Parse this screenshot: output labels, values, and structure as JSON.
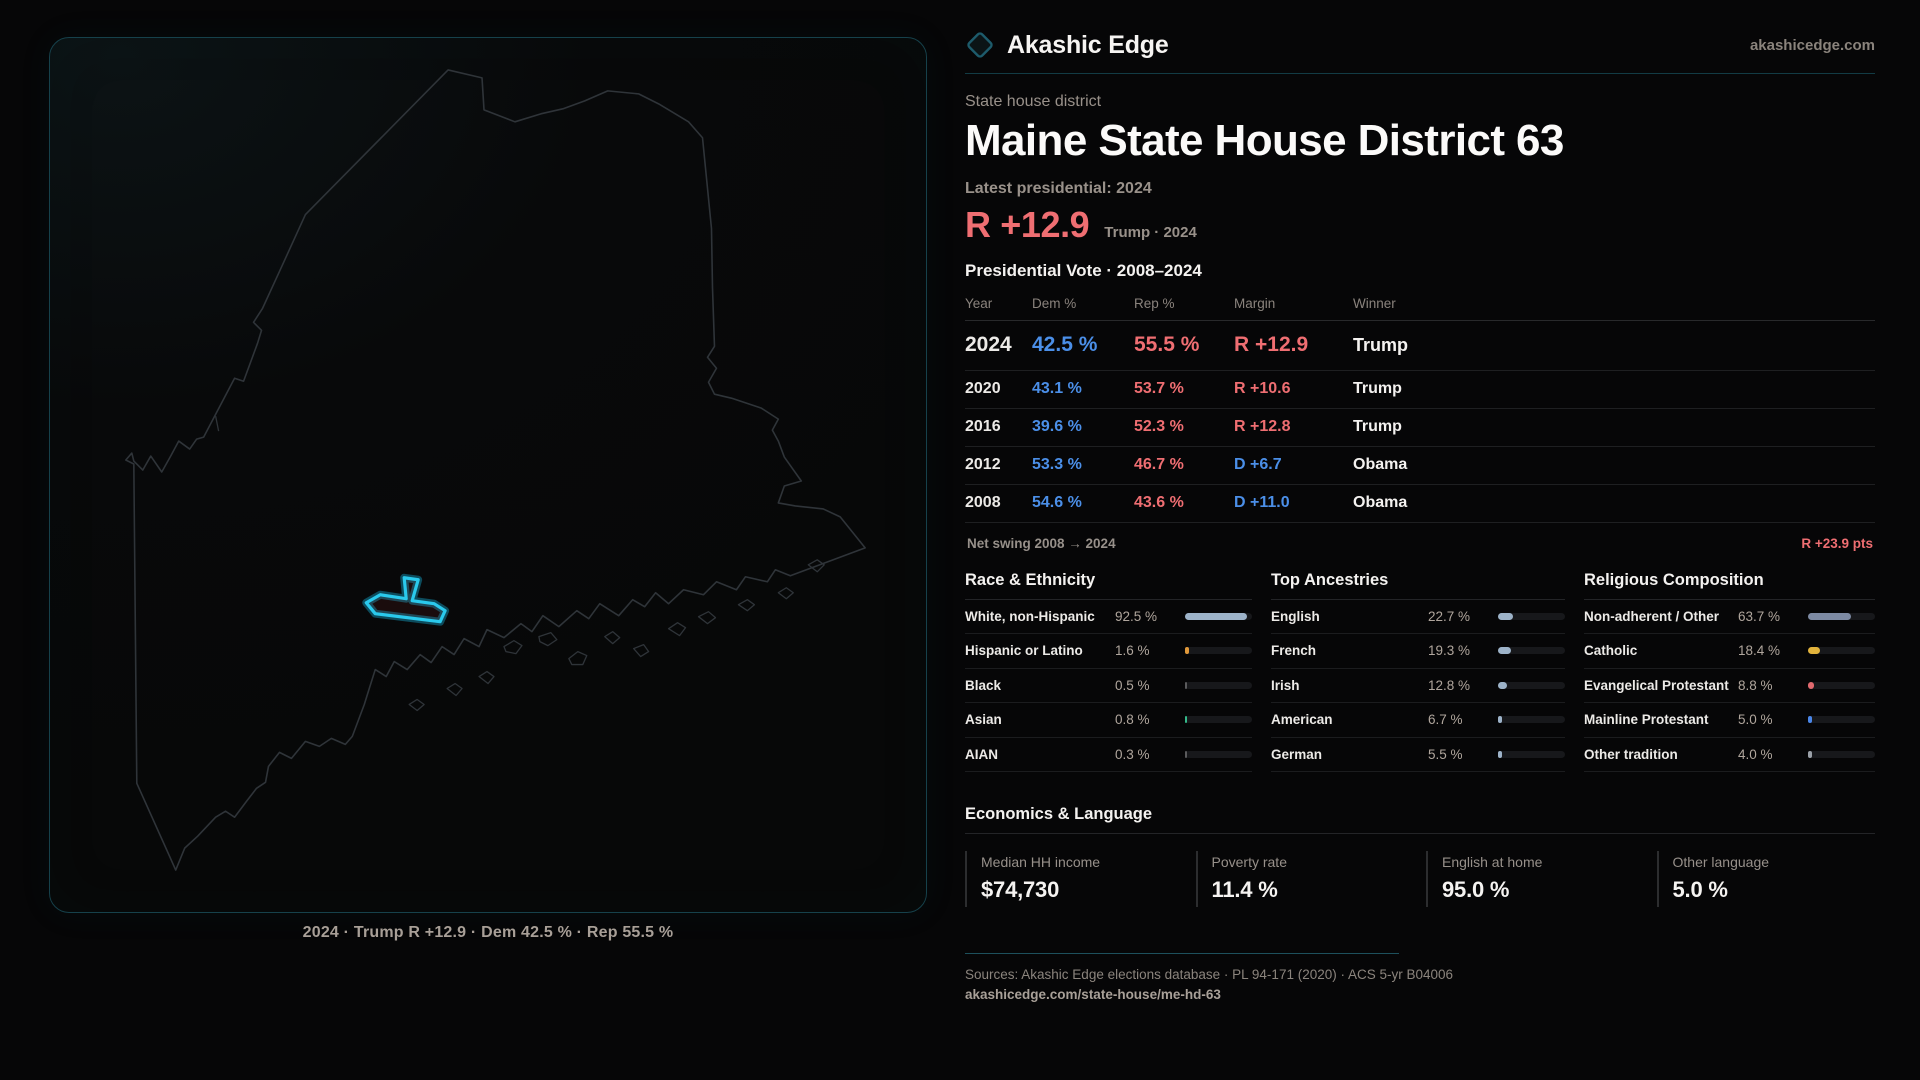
{
  "theme": {
    "accent_cyan": "#2ac9ec",
    "dem_blue": "#4b8fe8",
    "rep_red": "#ef6e72"
  },
  "brand": {
    "logo_icon": "diamond-icon",
    "name": "Akashic Edge",
    "site": "akashicedge.com"
  },
  "header": {
    "kicker": "State house district",
    "title": "Maine State House District 63",
    "latest_label": "Latest presidential: 2024",
    "headline_margin": "R +12.9",
    "headline_context": "Trump · 2024"
  },
  "table": {
    "title": "Presidential Vote · 2008–2024",
    "columns": [
      "Year",
      "Dem %",
      "Rep %",
      "Margin",
      "Winner"
    ],
    "rows": [
      {
        "year": "2024",
        "dem": "42.5 %",
        "rep": "55.5 %",
        "margin": "R +12.9",
        "margin_side": "R",
        "winner": "Trump",
        "emph": true
      },
      {
        "year": "2020",
        "dem": "43.1 %",
        "rep": "53.7 %",
        "margin": "R +10.6",
        "margin_side": "R",
        "winner": "Trump",
        "emph": false
      },
      {
        "year": "2016",
        "dem": "39.6 %",
        "rep": "52.3 %",
        "margin": "R +12.8",
        "margin_side": "R",
        "winner": "Trump",
        "emph": false
      },
      {
        "year": "2012",
        "dem": "53.3 %",
        "rep": "46.7 %",
        "margin": "D +6.7",
        "margin_side": "D",
        "winner": "Obama",
        "emph": false
      },
      {
        "year": "2008",
        "dem": "54.6 %",
        "rep": "43.6 %",
        "margin": "D +11.0",
        "margin_side": "D",
        "winner": "Obama",
        "emph": false
      }
    ]
  },
  "net_swing": {
    "label": "Net swing 2008 → 2024",
    "value": "R +23.9 pts"
  },
  "race": {
    "title": "Race & Ethnicity",
    "rows": [
      {
        "label": "White, non-Hispanic",
        "value": "92.5 %",
        "pct": 92.5,
        "color": "#9db3c9"
      },
      {
        "label": "Hispanic or Latino",
        "value": "1.6 %",
        "pct": 1.6,
        "color": "#e0983a"
      },
      {
        "label": "Black",
        "value": "0.5 %",
        "pct": 0.5,
        "color": "#5a5a5c"
      },
      {
        "label": "Asian",
        "value": "0.8 %",
        "pct": 0.8,
        "color": "#35b98a"
      },
      {
        "label": "AIAN",
        "value": "0.3 %",
        "pct": 0.3,
        "color": "#5a5a5c"
      }
    ]
  },
  "ancestries": {
    "title": "Top Ancestries",
    "rows": [
      {
        "label": "English",
        "value": "22.7 %",
        "pct": 22.7,
        "color": "#9db3c9"
      },
      {
        "label": "French",
        "value": "19.3 %",
        "pct": 19.3,
        "color": "#9db3c9"
      },
      {
        "label": "Irish",
        "value": "12.8 %",
        "pct": 12.8,
        "color": "#9db3c9"
      },
      {
        "label": "American",
        "value": "6.7 %",
        "pct": 6.7,
        "color": "#9db3c9"
      },
      {
        "label": "German",
        "value": "5.5 %",
        "pct": 5.5,
        "color": "#9db3c9"
      }
    ]
  },
  "religion": {
    "title": "Religious Composition",
    "rows": [
      {
        "label": "Non-adherent / Other",
        "value": "63.7 %",
        "pct": 63.7,
        "color": "#7d8aa3"
      },
      {
        "label": "Catholic",
        "value": "18.4 %",
        "pct": 18.4,
        "color": "#e2b33c"
      },
      {
        "label": "Evangelical Protestant",
        "value": "8.8 %",
        "pct": 8.8,
        "color": "#e0696e"
      },
      {
        "label": "Mainline Protestant",
        "value": "5.0 %",
        "pct": 5.0,
        "color": "#4a86e8"
      },
      {
        "label": "Other tradition",
        "value": "4.0 %",
        "pct": 4.0,
        "color": "#9aa0a8"
      }
    ]
  },
  "economics": {
    "title": "Economics & Language",
    "stats": [
      {
        "label": "Median HH income",
        "value": "$74,730"
      },
      {
        "label": "Poverty rate",
        "value": "11.4 %"
      },
      {
        "label": "English at home",
        "value": "95.0 %"
      },
      {
        "label": "Other language",
        "value": "5.0 %"
      }
    ]
  },
  "map": {
    "caption": "2024 · Trump R +12.9 · Dem 42.5 % · Rep 55.5 %"
  },
  "footer": {
    "sources": "Sources: Akashic Edge elections database · PL 94-171 (2020) · ACS 5-yr B04006",
    "url": "akashicedge.com/state-house/me-hd-63"
  }
}
